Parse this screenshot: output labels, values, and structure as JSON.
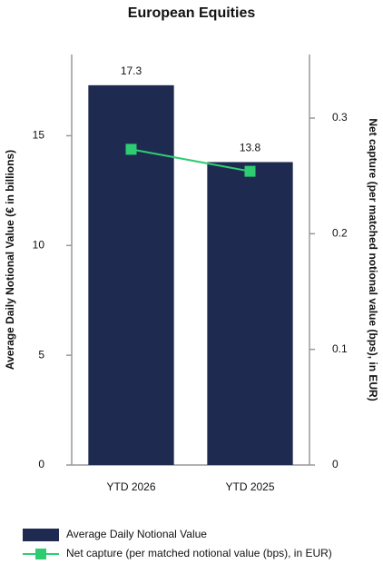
{
  "chart_data": {
    "type": "bar",
    "title": "European Equities",
    "categories": [
      "YTD 2026",
      "YTD 2025"
    ],
    "ylabel": "Average Daily Notional Value (€ in billions)",
    "y2label": "Net capture (per matched notional value (bps), in EUR)",
    "ylim": [
      0,
      18.7
    ],
    "yticks": [
      0,
      5,
      10,
      15
    ],
    "y2lim": [
      0,
      0.355
    ],
    "y2ticks": [
      0,
      0.1,
      0.2,
      0.3
    ],
    "series": [
      {
        "name": "Average Daily Notional Value",
        "type": "bar",
        "color": "#1f2a50",
        "values": [
          17.3,
          13.8
        ]
      },
      {
        "name": "Net capture (per matched notional value (bps), in EUR)",
        "type": "line",
        "axis": "y2",
        "color": "#2ecc71",
        "values": [
          0.273,
          0.254
        ]
      }
    ]
  }
}
